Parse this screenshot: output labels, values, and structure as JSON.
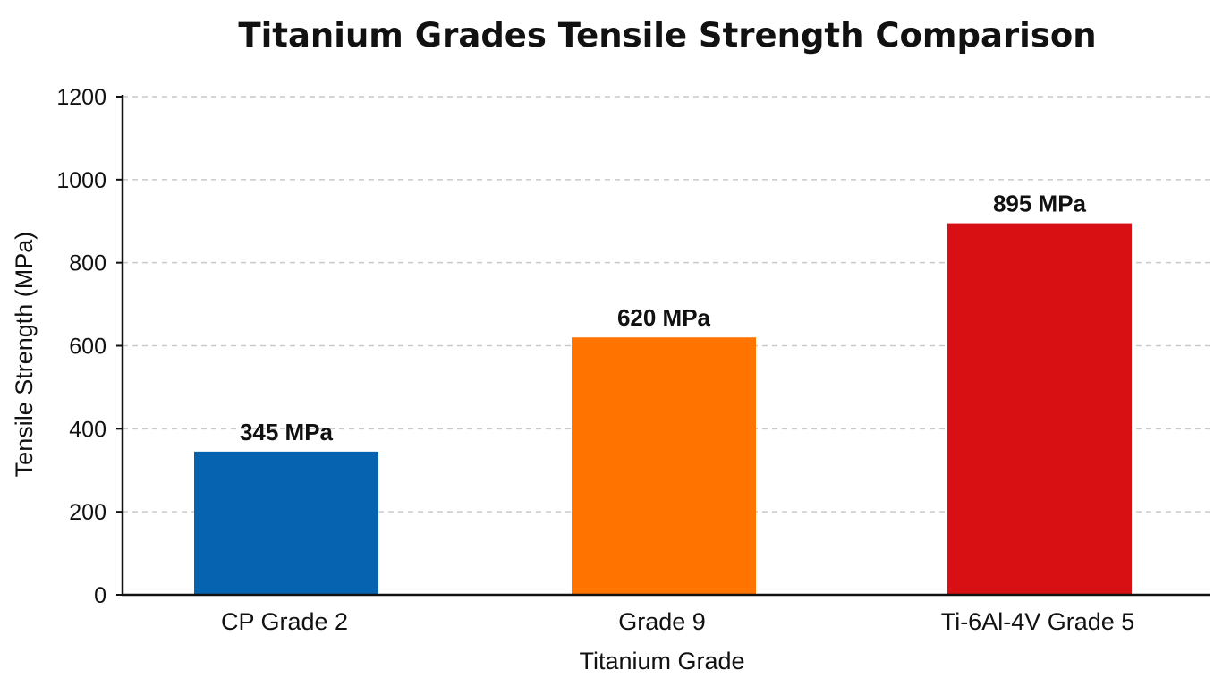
{
  "chart_data": {
    "type": "bar",
    "title": "Titanium Grades Tensile Strength Comparison",
    "xlabel": "Titanium Grade",
    "ylabel": "Tensile Strength (MPa)",
    "categories": [
      "CP Grade 2",
      "Grade 9",
      "Ti-6Al-4V Grade 5"
    ],
    "values": [
      345,
      620,
      895
    ],
    "data_labels": [
      "345 MPa",
      "620 MPa",
      "895 MPa"
    ],
    "colors": [
      "#0563b0",
      "#ff7300",
      "#d91013"
    ],
    "ylim": [
      0,
      1200
    ],
    "yticks": [
      0,
      200,
      400,
      600,
      800,
      1000,
      1200
    ],
    "grid": true,
    "legend": "none"
  }
}
